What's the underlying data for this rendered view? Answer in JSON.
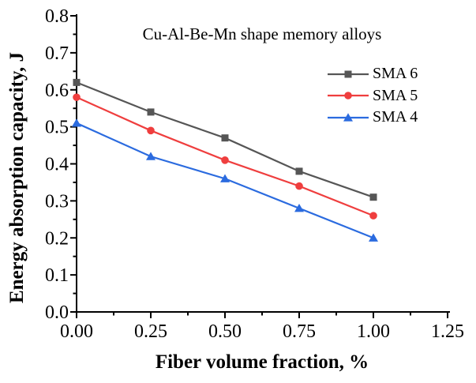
{
  "figure": {
    "background": "#ffffff",
    "axis_color": "#000000"
  },
  "chart_data": {
    "type": "line",
    "title": "Cu-Al-Be-Mn shape memory alloys",
    "xlabel": "Fiber volume fraction, %",
    "ylabel": "Energy absorption capacity, J",
    "x": [
      0.0,
      0.25,
      0.5,
      0.75,
      1.0
    ],
    "series": [
      {
        "name": "SMA 6",
        "color": "#565656",
        "marker": "square",
        "values": [
          0.62,
          0.54,
          0.47,
          0.38,
          0.31
        ]
      },
      {
        "name": "SMA 5",
        "color": "#ef3e3e",
        "marker": "circle",
        "values": [
          0.58,
          0.49,
          0.41,
          0.34,
          0.26
        ]
      },
      {
        "name": "SMA 4",
        "color": "#2b6bdf",
        "marker": "triangle",
        "values": [
          0.51,
          0.42,
          0.36,
          0.28,
          0.2
        ]
      }
    ],
    "xlim": [
      0.0,
      1.25
    ],
    "ylim": [
      0.0,
      0.8
    ],
    "xticks": {
      "values": [
        0.0,
        0.25,
        0.5,
        0.75,
        1.0,
        1.25
      ],
      "labels": [
        "0.00",
        "0.25",
        "0.50",
        "0.75",
        "1.00",
        "1.25"
      ],
      "minor": [
        0.125,
        0.375,
        0.625,
        0.875,
        1.125
      ]
    },
    "yticks": {
      "values": [
        0.0,
        0.1,
        0.2,
        0.3,
        0.4,
        0.5,
        0.6,
        0.7,
        0.8
      ],
      "labels": [
        "0.0",
        "0.1",
        "0.2",
        "0.3",
        "0.4",
        "0.5",
        "0.6",
        "0.7",
        "0.8"
      ],
      "minor": [
        0.05,
        0.15,
        0.25,
        0.35,
        0.45,
        0.55,
        0.65,
        0.75
      ]
    },
    "grid": false,
    "legend_position": "upper-right-inside",
    "legend_entries": [
      "SMA 6",
      "SMA 5",
      "SMA 4"
    ]
  }
}
